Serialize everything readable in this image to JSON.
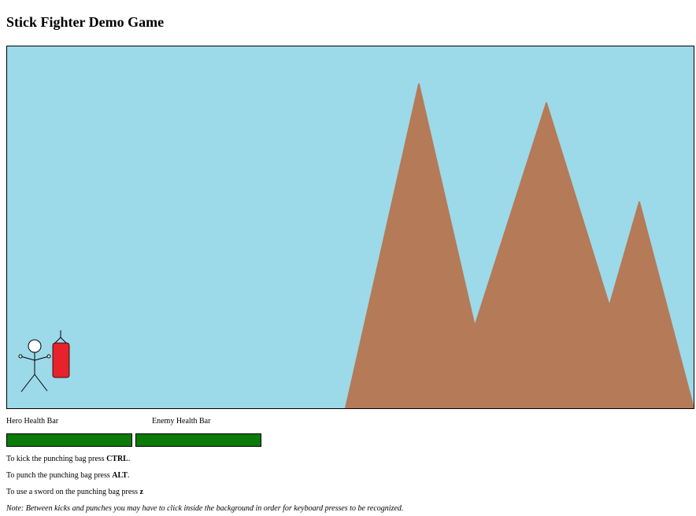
{
  "title": "Stick Fighter Demo Game",
  "colors": {
    "sky": "#9cd9e9",
    "mountain": "#b57a57",
    "health": "#0b7a0b",
    "punching_bag": "#e8222a"
  },
  "icons": [
    "stick-figure-hero",
    "punching-bag"
  ],
  "health": {
    "hero_label": "Hero Health Bar",
    "enemy_label": "Enemy Health Bar",
    "hero_level": 1.0,
    "enemy_level": 1.0
  },
  "instructions": {
    "kick_prefix": "To kick the punching bag press ",
    "kick_key": "CTRL",
    "kick_suffix": ".",
    "punch_prefix": "To punch the punching bag press ",
    "punch_key": "ALT",
    "punch_suffix": ".",
    "sword_prefix": "To use a sword on the punching bag press ",
    "sword_key": "z",
    "note": "Note: Between kicks and punches you may have to click inside the background in order for keyboard presses to be recognized."
  }
}
